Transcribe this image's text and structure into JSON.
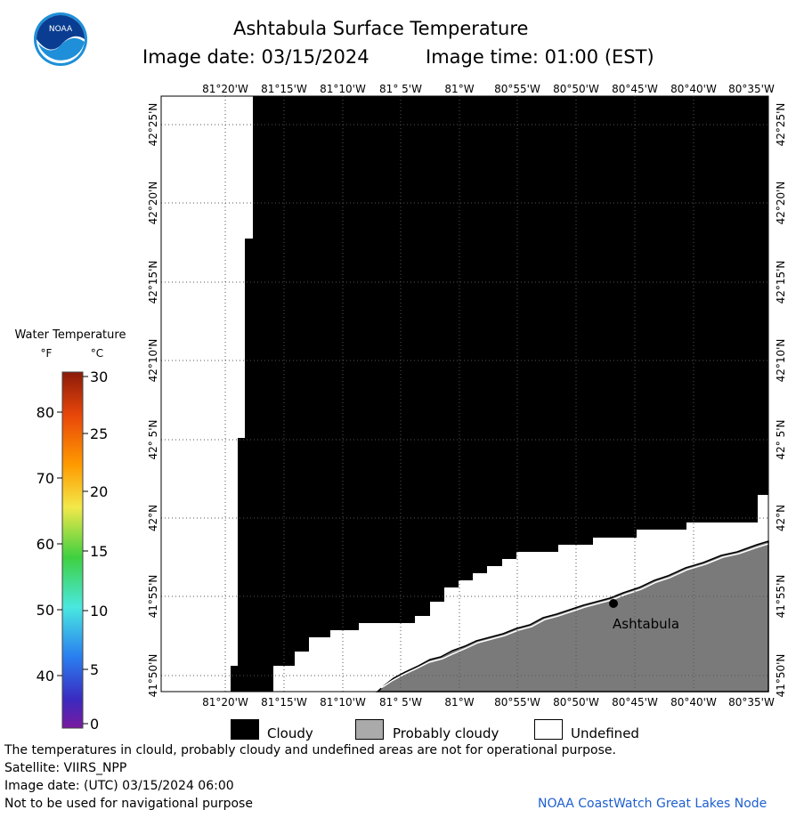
{
  "header": {
    "title": "Ashtabula Surface Temperature",
    "image_date_label": "Image date: 03/15/2024",
    "image_time_label": "Image time: 01:00 (EST)",
    "logo_text": "NOAA"
  },
  "map": {
    "lon_labels": [
      "81°20'W",
      "81°15'W",
      "81°10'W",
      "81° 5'W",
      "81°W",
      "80°55'W",
      "80°50'W",
      "80°45'W",
      "80°40'W",
      "80°35'W"
    ],
    "lat_labels": [
      "42°25'N",
      "42°20'N",
      "42°15'N",
      "42°10'N",
      "42° 5'N",
      "42°N",
      "41°55'N",
      "41°50'N"
    ],
    "city_label": "Ashtabula"
  },
  "colorbar": {
    "title": "Water Temperature",
    "unit_f": "°F",
    "unit_c": "°C",
    "f_ticks": [
      "80",
      "70",
      "60",
      "50",
      "40"
    ],
    "c_ticks": [
      "30",
      "25",
      "20",
      "15",
      "10",
      "5",
      "0"
    ]
  },
  "legend": {
    "cloudy": "Cloudy",
    "probably_cloudy": "Probably cloudy",
    "undefined": "Undefined",
    "colors": {
      "cloudy": "#000000",
      "probably_cloudy": "#aaaaaa",
      "undefined": "#ffffff",
      "land": "#7a7a7a"
    }
  },
  "footer": {
    "note": "The temperatures in clould, probably cloudy and undefined areas are not for operational purpose.",
    "satellite": "Satellite: VIIRS_NPP",
    "utc_date": "Image date: (UTC) 03/15/2024  06:00",
    "nav_warning": "Not to be used for navigational purpose",
    "credit": "NOAA CoastWatch Great Lakes Node"
  }
}
